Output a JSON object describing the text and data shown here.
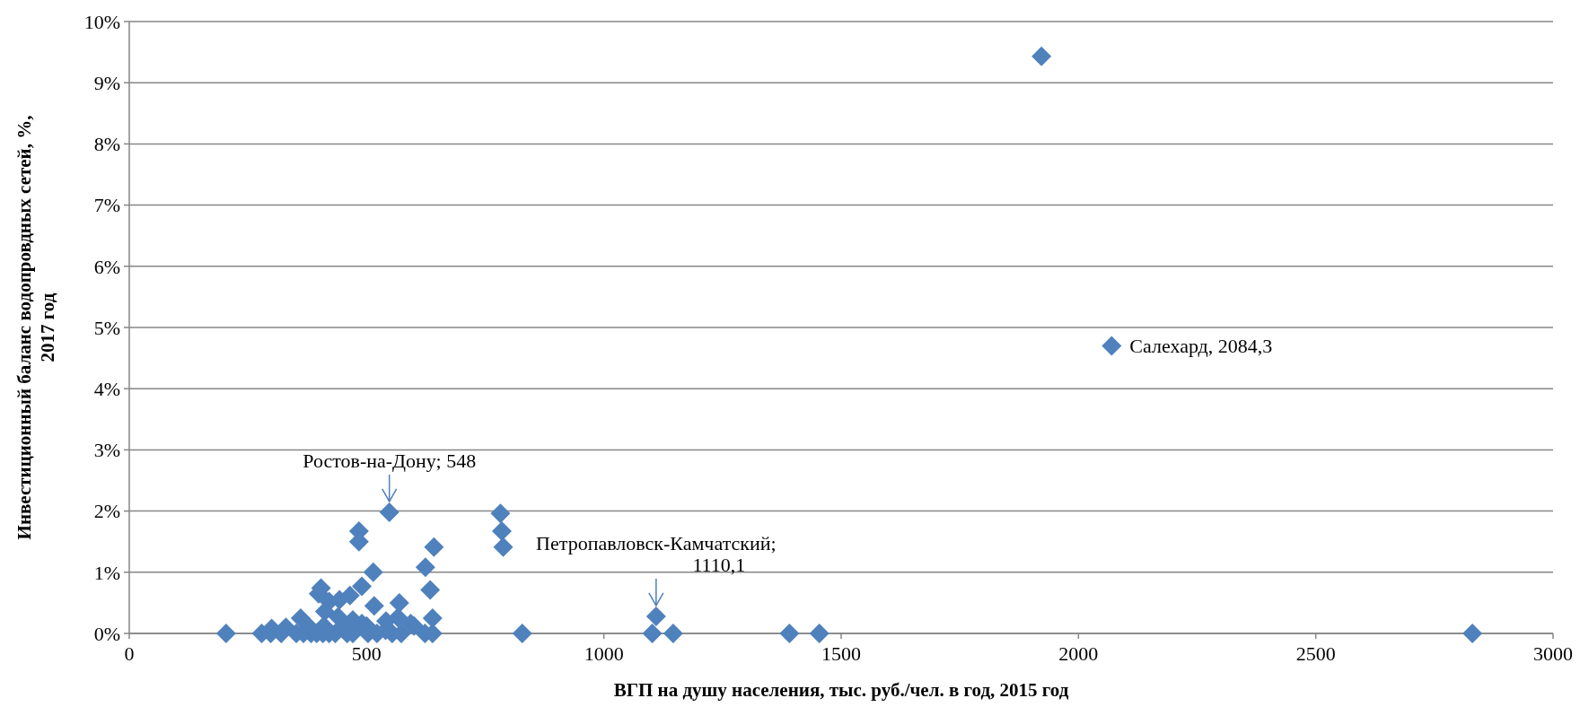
{
  "chart_data": {
    "type": "scatter",
    "xlabel": "ВГП на душу населения, тыс. руб./чел. в год, 2015 год",
    "ylabel": "Инвестиционный баланс водопровдных сетей, %, 2017 год",
    "xlim": [
      0,
      3000
    ],
    "xticks": [
      0,
      500,
      1000,
      1500,
      2000,
      2500,
      3000
    ],
    "ylim": [
      0,
      10
    ],
    "yticks": [
      {
        "value": 0,
        "label": "0%"
      },
      {
        "value": 1,
        "label": "1%"
      },
      {
        "value": 2,
        "label": "2%"
      },
      {
        "value": 3,
        "label": "3%"
      },
      {
        "value": 4,
        "label": "4%"
      },
      {
        "value": 5,
        "label": "5%"
      },
      {
        "value": 6,
        "label": "6%"
      },
      {
        "value": 7,
        "label": "7%"
      },
      {
        "value": 8,
        "label": "8%"
      },
      {
        "value": 9,
        "label": "9%"
      },
      {
        "value": 10,
        "label": "10%"
      }
    ],
    "grid": "y",
    "marker": "diamond",
    "legend": "right",
    "series": [
      {
        "color": "#4f81bd",
        "x": [
          204,
          279,
          298,
          320,
          352,
          367,
          383,
          395,
          408,
          421,
          434,
          459,
          471,
          503,
          522,
          554,
          573,
          623,
          639,
          828,
          1102,
          1146,
          1391,
          1454,
          2830,
          548,
          484,
          484,
          642,
          624,
          634,
          514,
          490,
          404,
          399,
          465,
          421,
          443,
          516,
          569,
          639,
          593,
          361,
          412,
          440,
          471,
          541,
          566,
          490,
          300,
          330,
          380,
          410,
          450,
          500,
          540,
          600,
          782,
          785,
          788,
          1110.1
        ],
        "values": [
          0,
          0,
          0,
          0,
          0,
          0,
          0,
          0,
          0,
          0,
          0,
          0,
          0,
          0,
          0,
          0,
          0,
          0,
          0,
          0,
          0,
          0,
          0,
          0,
          0,
          1.98,
          1.67,
          1.5,
          1.41,
          1.08,
          0.71,
          1,
          0.77,
          0.74,
          0.65,
          0.62,
          0.52,
          0.55,
          0.45,
          0.5,
          0.25,
          0.16,
          0.25,
          0.36,
          0.27,
          0.22,
          0.2,
          0.26,
          0.16,
          0.08,
          0.1,
          0.1,
          0.12,
          0.1,
          0.12,
          0.05,
          0.12,
          1.96,
          1.67,
          1.41,
          0.28
        ]
      },
      {
        "name": "Салехард, 2084,3",
        "color": "#4f81bd",
        "x": [
          1922
        ],
        "values": [
          9.43
        ]
      }
    ],
    "annotations": [
      {
        "text": "Ростов-на-Дону; 548",
        "x": 548,
        "y": 1.98
      },
      {
        "text": "Петропавловск-Камчатский;\n1110,1",
        "x": 1110.1,
        "y": 0.28
      }
    ]
  }
}
